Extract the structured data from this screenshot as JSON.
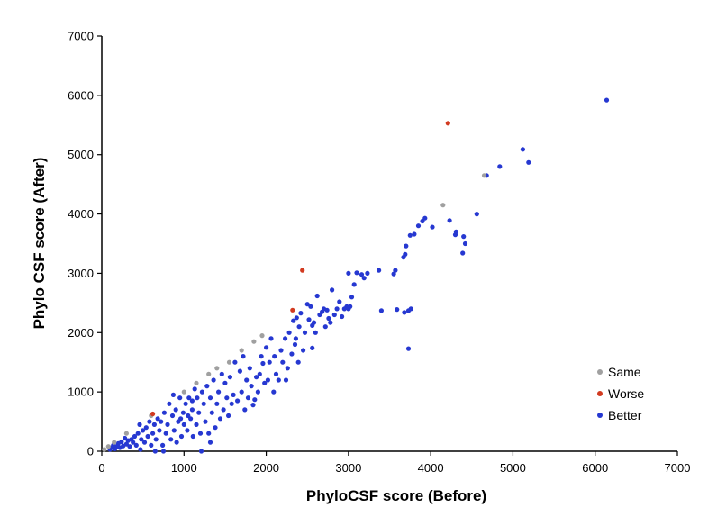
{
  "chart_data": {
    "type": "scatter",
    "title": "",
    "xlabel": "PhyloCSF score (Before)",
    "ylabel": "Phylo CSF score (After)",
    "xlim": [
      0,
      7000
    ],
    "ylim": [
      0,
      7000
    ],
    "x_ticks": [
      "0",
      "1000",
      "2000",
      "3000",
      "4000",
      "5000",
      "6000",
      "7000"
    ],
    "y_ticks": [
      "0",
      "1000",
      "2000",
      "3000",
      "4000",
      "5000",
      "6000",
      "7000"
    ],
    "grid": false,
    "legend_position": "bottom-right",
    "series": [
      {
        "name": "Same",
        "color": "#a0a0a0",
        "points": [
          [
            30,
            30
          ],
          [
            80,
            80
          ],
          [
            150,
            150
          ],
          [
            300,
            300
          ],
          [
            600,
            600
          ],
          [
            1000,
            1000
          ],
          [
            1150,
            1150
          ],
          [
            1300,
            1300
          ],
          [
            1400,
            1400
          ],
          [
            1550,
            1500
          ],
          [
            1700,
            1700
          ],
          [
            1850,
            1850
          ],
          [
            1950,
            1950
          ],
          [
            4150,
            4150
          ],
          [
            4650,
            4650
          ]
        ]
      },
      {
        "name": "Worse",
        "color": "#d23a20",
        "points": [
          [
            620,
            630
          ],
          [
            2320,
            2380
          ],
          [
            2440,
            3050
          ],
          [
            4210,
            5530
          ]
        ]
      },
      {
        "name": "Better",
        "color": "#2638d1",
        "points": [
          [
            6140,
            5920
          ],
          [
            5120,
            5090
          ],
          [
            5190,
            4870
          ],
          [
            4840,
            4800
          ],
          [
            4680,
            4650
          ],
          [
            4560,
            4000
          ],
          [
            4400,
            3620
          ],
          [
            4420,
            3500
          ],
          [
            4390,
            3340
          ],
          [
            4310,
            3700
          ],
          [
            4300,
            3650
          ],
          [
            4230,
            3890
          ],
          [
            4020,
            3780
          ],
          [
            3930,
            3930
          ],
          [
            3900,
            3880
          ],
          [
            3850,
            3800
          ],
          [
            3800,
            3660
          ],
          [
            3750,
            3640
          ],
          [
            3700,
            3460
          ],
          [
            3690,
            3320
          ],
          [
            3670,
            3270
          ],
          [
            3570,
            3050
          ],
          [
            3550,
            2990
          ],
          [
            3730,
            1730
          ],
          [
            3760,
            2400
          ],
          [
            3730,
            2370
          ],
          [
            3680,
            2340
          ],
          [
            3590,
            2390
          ],
          [
            3400,
            2370
          ],
          [
            3370,
            3050
          ],
          [
            3230,
            3000
          ],
          [
            3190,
            2920
          ],
          [
            3160,
            2980
          ],
          [
            3100,
            3010
          ],
          [
            3070,
            2810
          ],
          [
            3000,
            3000
          ],
          [
            3040,
            2600
          ],
          [
            3020,
            2440
          ],
          [
            3000,
            2400
          ],
          [
            2980,
            2440
          ],
          [
            2950,
            2400
          ],
          [
            2920,
            2270
          ],
          [
            2890,
            2520
          ],
          [
            2860,
            2400
          ],
          [
            2830,
            2300
          ],
          [
            2800,
            2720
          ],
          [
            2780,
            2170
          ],
          [
            2760,
            2240
          ],
          [
            2740,
            2380
          ],
          [
            2720,
            2100
          ],
          [
            2700,
            2400
          ],
          [
            2680,
            2350
          ],
          [
            2650,
            2300
          ],
          [
            2620,
            2620
          ],
          [
            2600,
            2000
          ],
          [
            2580,
            2170
          ],
          [
            2560,
            2120
          ],
          [
            2560,
            1740
          ],
          [
            2540,
            2440
          ],
          [
            2520,
            2220
          ],
          [
            2500,
            2480
          ],
          [
            2470,
            2000
          ],
          [
            2450,
            1700
          ],
          [
            2420,
            2330
          ],
          [
            2400,
            2100
          ],
          [
            2390,
            1500
          ],
          [
            2370,
            2250
          ],
          [
            2360,
            1900
          ],
          [
            2350,
            1800
          ],
          [
            2330,
            2200
          ],
          [
            2310,
            1640
          ],
          [
            2280,
            2000
          ],
          [
            2260,
            1400
          ],
          [
            2240,
            1200
          ],
          [
            2230,
            1900
          ],
          [
            2200,
            1500
          ],
          [
            2180,
            1700
          ],
          [
            2150,
            1200
          ],
          [
            2120,
            1300
          ],
          [
            2100,
            1600
          ],
          [
            2090,
            1000
          ],
          [
            2060,
            1900
          ],
          [
            2040,
            1500
          ],
          [
            2020,
            1200
          ],
          [
            2000,
            1750
          ],
          [
            1980,
            1150
          ],
          [
            1960,
            1480
          ],
          [
            1940,
            1600
          ],
          [
            1920,
            1300
          ],
          [
            1900,
            1000
          ],
          [
            1880,
            1250
          ],
          [
            1860,
            870
          ],
          [
            1840,
            780
          ],
          [
            1820,
            1100
          ],
          [
            1800,
            1400
          ],
          [
            1780,
            900
          ],
          [
            1760,
            1200
          ],
          [
            1740,
            700
          ],
          [
            1720,
            1600
          ],
          [
            1700,
            1000
          ],
          [
            1680,
            1350
          ],
          [
            1650,
            850
          ],
          [
            1620,
            1500
          ],
          [
            1600,
            950
          ],
          [
            1580,
            800
          ],
          [
            1560,
            1250
          ],
          [
            1540,
            600
          ],
          [
            1520,
            900
          ],
          [
            1500,
            1150
          ],
          [
            1480,
            700
          ],
          [
            1460,
            1300
          ],
          [
            1440,
            550
          ],
          [
            1420,
            1000
          ],
          [
            1400,
            800
          ],
          [
            1380,
            400
          ],
          [
            1360,
            1200
          ],
          [
            1340,
            650
          ],
          [
            1320,
            900
          ],
          [
            1300,
            300
          ],
          [
            1280,
            1100
          ],
          [
            1260,
            500
          ],
          [
            1240,
            800
          ],
          [
            1220,
            1000
          ],
          [
            1200,
            300
          ],
          [
            1180,
            650
          ],
          [
            1160,
            900
          ],
          [
            1150,
            450
          ],
          [
            1130,
            1050
          ],
          [
            1110,
            250
          ],
          [
            1100,
            700
          ],
          [
            1080,
            550
          ],
          [
            1060,
            900
          ],
          [
            1040,
            350
          ],
          [
            1020,
            800
          ],
          [
            1000,
            450
          ],
          [
            990,
            650
          ],
          [
            970,
            250
          ],
          [
            950,
            900
          ],
          [
            930,
            500
          ],
          [
            910,
            150
          ],
          [
            900,
            700
          ],
          [
            880,
            350
          ],
          [
            860,
            600
          ],
          [
            840,
            200
          ],
          [
            820,
            800
          ],
          [
            800,
            450
          ],
          [
            780,
            300
          ],
          [
            760,
            650
          ],
          [
            740,
            100
          ],
          [
            720,
            500
          ],
          [
            700,
            350
          ],
          [
            680,
            550
          ],
          [
            660,
            200
          ],
          [
            640,
            450
          ],
          [
            620,
            300
          ],
          [
            600,
            100
          ],
          [
            580,
            500
          ],
          [
            560,
            250
          ],
          [
            540,
            400
          ],
          [
            520,
            150
          ],
          [
            500,
            350
          ],
          [
            480,
            200
          ],
          [
            460,
            450
          ],
          [
            440,
            300
          ],
          [
            420,
            100
          ],
          [
            400,
            250
          ],
          [
            380,
            150
          ],
          [
            360,
            200
          ],
          [
            340,
            80
          ],
          [
            320,
            180
          ],
          [
            300,
            120
          ],
          [
            280,
            220
          ],
          [
            260,
            90
          ],
          [
            240,
            160
          ],
          [
            220,
            60
          ],
          [
            200,
            130
          ],
          [
            180,
            80
          ],
          [
            160,
            40
          ],
          [
            140,
            100
          ],
          [
            120,
            60
          ],
          [
            100,
            30
          ],
          [
            1210,
            0
          ],
          [
            650,
            0
          ],
          [
            470,
            30
          ],
          [
            750,
            0
          ],
          [
            1320,
            150
          ],
          [
            1100,
            850
          ],
          [
            870,
            950
          ],
          [
            960,
            550
          ],
          [
            1050,
            600
          ]
        ]
      }
    ]
  }
}
